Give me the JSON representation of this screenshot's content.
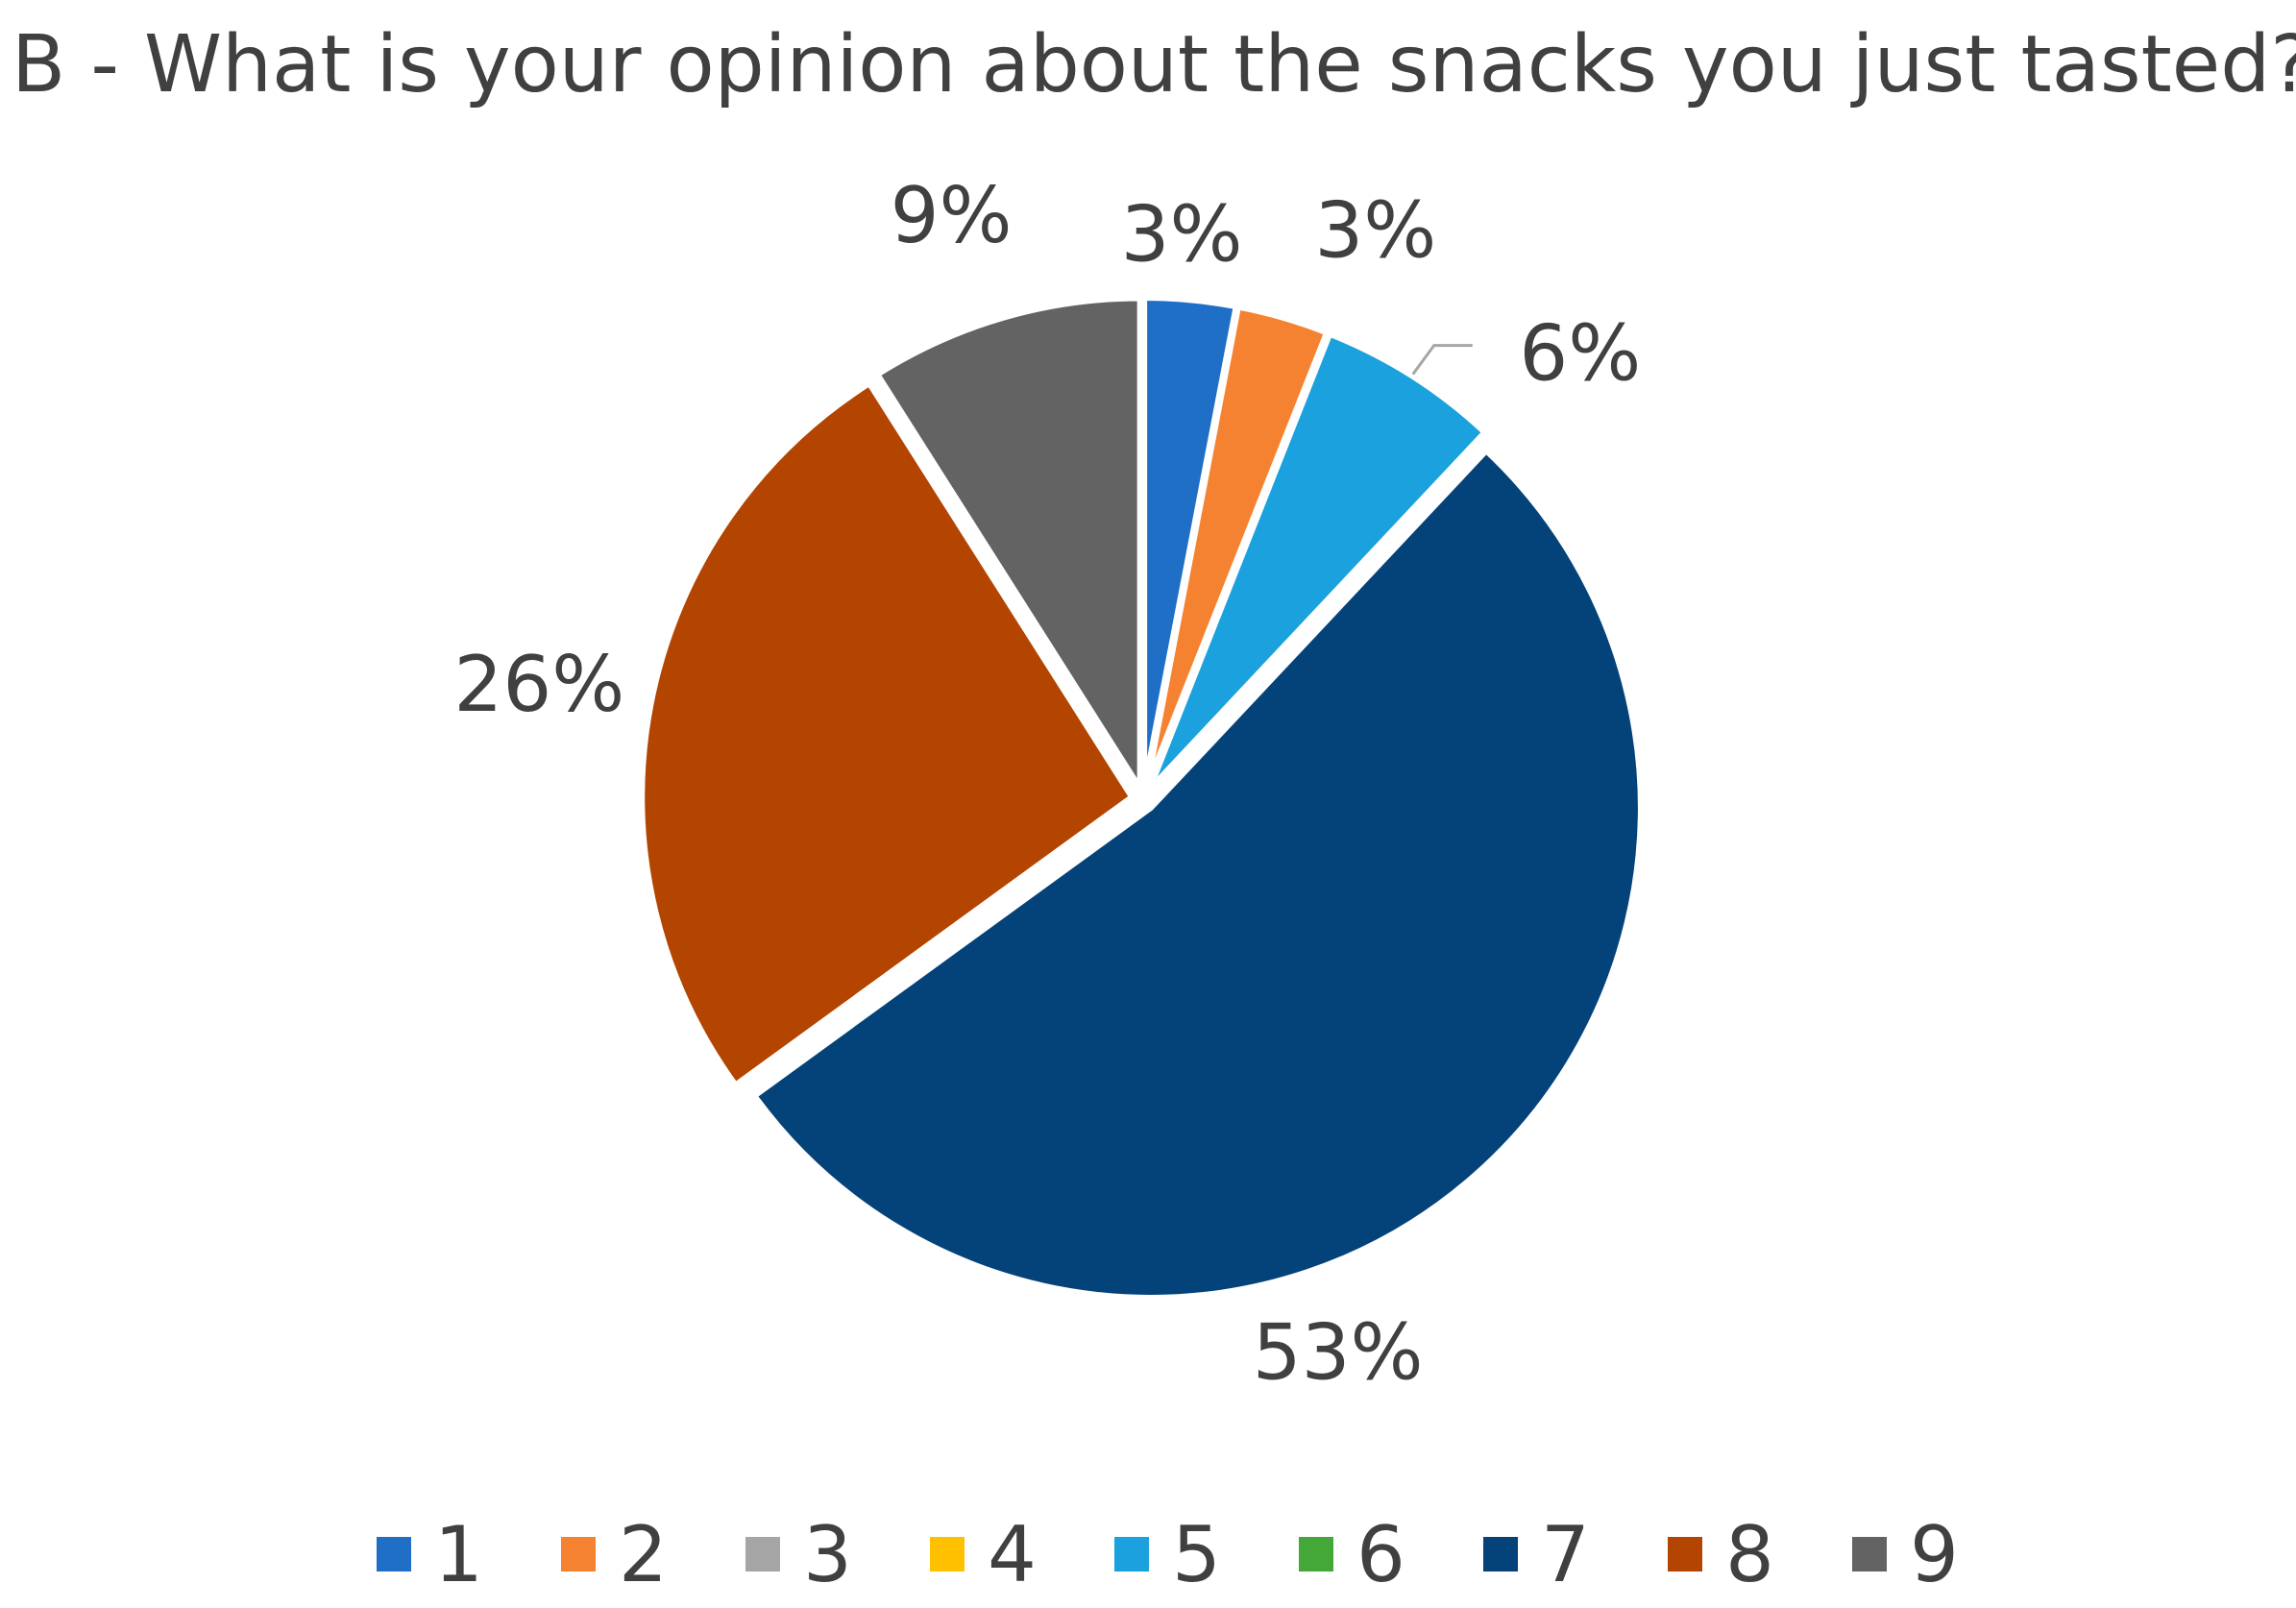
{
  "chart_data": {
    "type": "pie",
    "title": "B - What is your opinion about the snacks you just tasted?",
    "categories": [
      "1",
      "2",
      "3",
      "4",
      "5",
      "6",
      "7",
      "8",
      "9"
    ],
    "values": [
      3,
      3,
      0,
      0,
      6,
      0,
      53,
      26,
      9
    ],
    "data_labels": [
      "3%",
      "3%",
      "",
      "",
      "6%",
      "",
      "53%",
      "26%",
      "9%"
    ],
    "colors": [
      "#1f6fc6",
      "#f58231",
      "#a5a5a5",
      "#ffc000",
      "#1ba1dd",
      "#43a838",
      "#04427a",
      "#b34500",
      "#636363"
    ],
    "legend_position": "bottom",
    "start_angle_deg": 0,
    "direction": "clockwise",
    "exploded": true
  }
}
